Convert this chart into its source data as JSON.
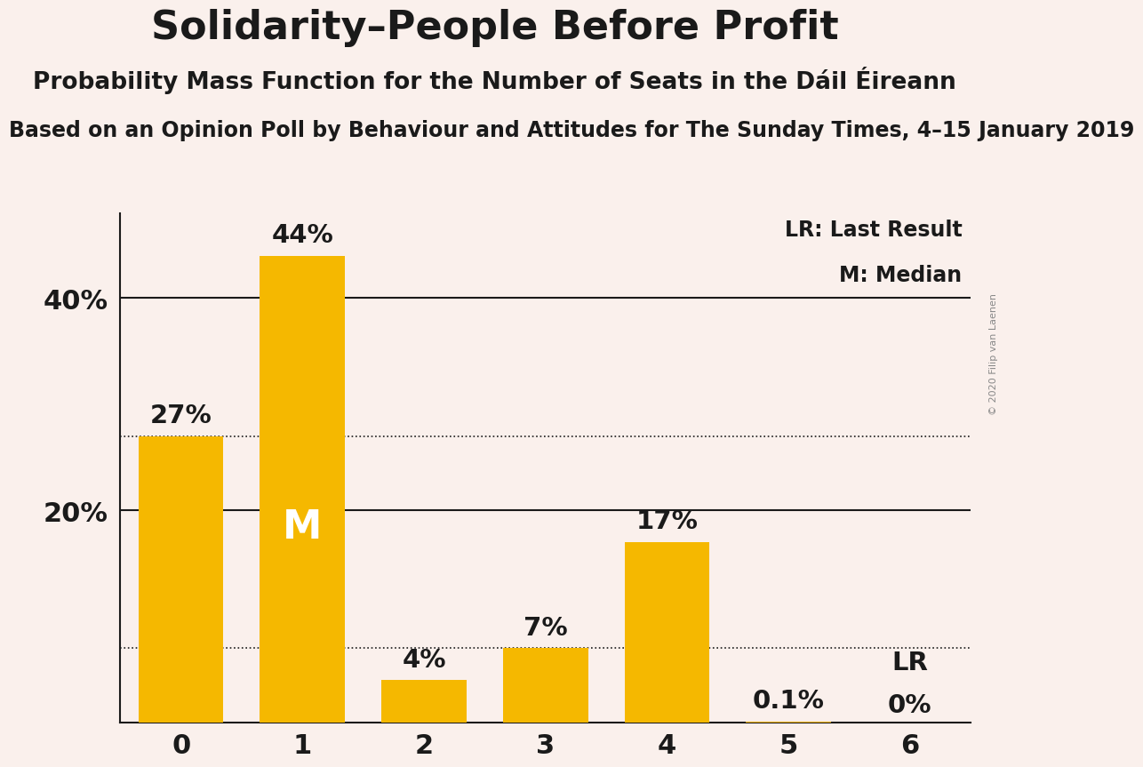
{
  "title": "Solidarity–People Before Profit",
  "subtitle": "Probability Mass Function for the Number of Seats in the Dáil Éireann",
  "subsubtitle": "Based on an Opinion Poll by Behaviour and Attitudes for The Sunday Times, 4–15 January 2019",
  "copyright": "© 2020 Filip van Laenen",
  "categories": [
    0,
    1,
    2,
    3,
    4,
    5,
    6
  ],
  "values": [
    27,
    44,
    4,
    7,
    17,
    0.1,
    0
  ],
  "labels": [
    "27%",
    "44%",
    "4%",
    "7%",
    "17%",
    "0.1%",
    "0%"
  ],
  "bar_color": "#F5B800",
  "median_bar": 1,
  "lr_bar": 6,
  "lr_label": "LR",
  "median_label": "M",
  "background_color": "#FAF0EC",
  "axis_color": "#1a1a1a",
  "label_color_outside": "#1a1a1a",
  "label_color_inside": "#FFFFFF",
  "dotted_lines": [
    27,
    7
  ],
  "solid_lines": [
    40,
    20
  ],
  "ylim": [
    0,
    48
  ],
  "yticks": [
    20,
    40
  ],
  "ytick_labels": [
    "20%",
    "40%"
  ],
  "title_fontsize": 32,
  "subtitle_fontsize": 19,
  "subsubtitle_fontsize": 17,
  "label_fontsize": 21,
  "tick_fontsize": 22,
  "median_label_fontsize": 32,
  "lr_label_fontsize": 21,
  "legend_fontsize": 17
}
